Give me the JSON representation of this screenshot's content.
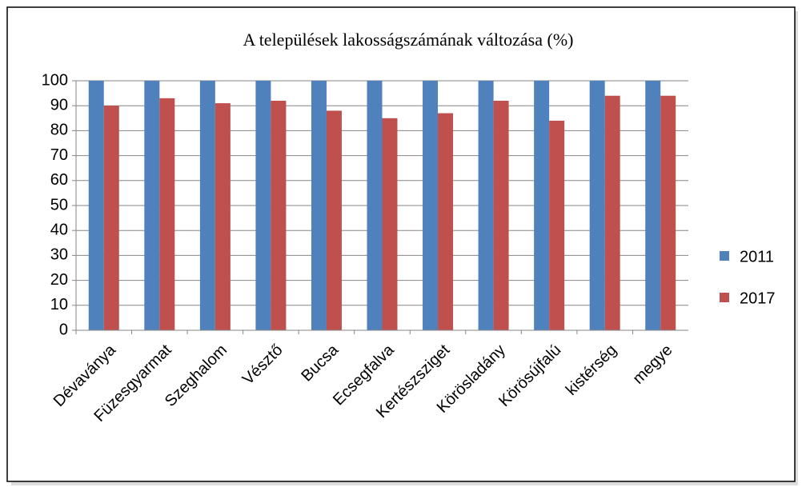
{
  "chart_data": {
    "type": "bar",
    "title": "A települések lakosságszámának változása (%)",
    "categories": [
      "Dévaványa",
      "Füzesgyarmat",
      "Szeghalom",
      "Vésztő",
      "Bucsa",
      "Ecsegfalva",
      "Kertészsziget",
      "Körösladány",
      "Körösújfalú",
      "kistérség",
      "megye"
    ],
    "series": [
      {
        "name": "2011",
        "color": "#4f81bd",
        "values": [
          100,
          100,
          100,
          100,
          100,
          100,
          100,
          100,
          100,
          100,
          100
        ]
      },
      {
        "name": "2017",
        "color": "#c0504d",
        "values": [
          90,
          93,
          91,
          92,
          88,
          85,
          87,
          92,
          84,
          94,
          94
        ]
      }
    ],
    "ylim": [
      0,
      100
    ],
    "yticks": [
      0,
      10,
      20,
      30,
      40,
      50,
      60,
      70,
      80,
      90,
      100
    ],
    "grid": true,
    "legend": "right"
  }
}
